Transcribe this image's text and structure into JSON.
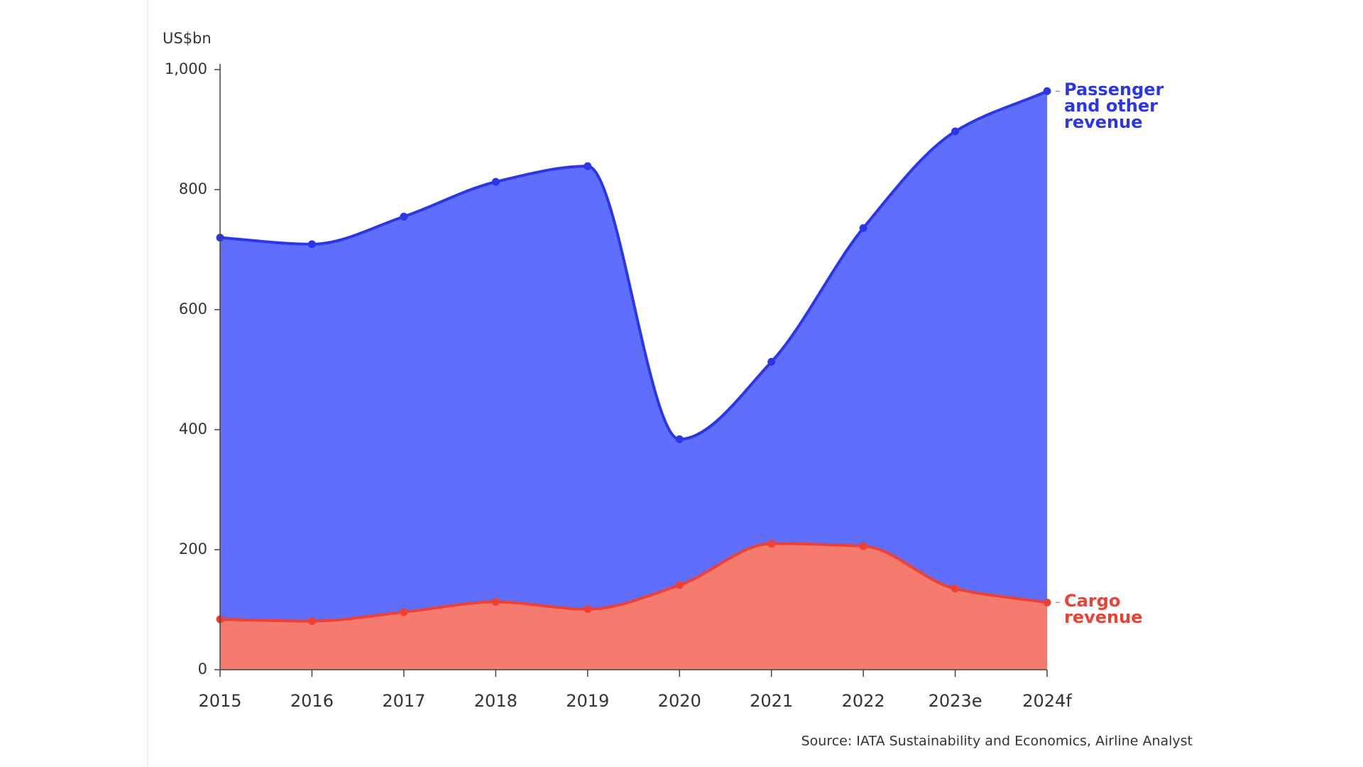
{
  "chart_data": {
    "type": "stacked_area",
    "y_axis_label": "US$bn",
    "source": "Source: IATA Sustainability and Economics, Airline Analyst",
    "categories": [
      "2015",
      "2016",
      "2017",
      "2018",
      "2019",
      "2020",
      "2021",
      "2022",
      "2023e",
      "2024f"
    ],
    "series": [
      {
        "name": "Cargo revenue",
        "color": "#ee4133",
        "fill": "#f47b6e",
        "values": [
          84,
          81,
          96,
          113,
          101,
          141,
          210,
          206,
          135,
          112
        ]
      },
      {
        "name": "Passenger and other revenue",
        "color": "#2a36e8",
        "fill": "#5f6ffb",
        "values": [
          636,
          628,
          659,
          700,
          738,
          243,
          303,
          530,
          762,
          852
        ]
      }
    ],
    "ylim": [
      0,
      1000
    ],
    "yticks": [
      0,
      200,
      400,
      600,
      800,
      {
        "value": 1000,
        "label": "1,000"
      }
    ]
  }
}
